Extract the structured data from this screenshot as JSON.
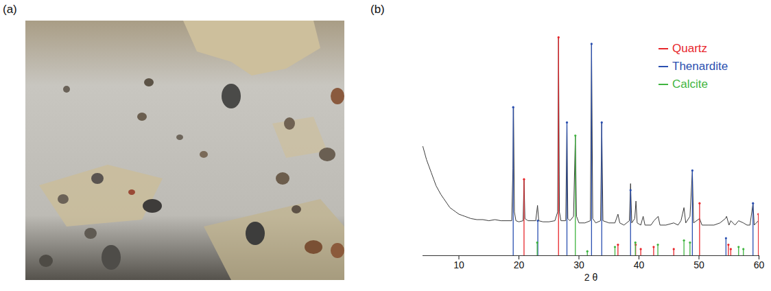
{
  "panels": [
    {
      "label": "(a)"
    },
    {
      "label": "(b)"
    }
  ],
  "chart_data": {
    "type": "line",
    "xlabel": "2 θ",
    "ylabel": null,
    "xlim": [
      4,
      60
    ],
    "xticks": [
      10,
      20,
      30,
      40,
      50,
      60
    ],
    "ylim": [
      0,
      105
    ],
    "tick_labels": "x",
    "grid": false,
    "legend": "top-right",
    "series": [
      {
        "name": null,
        "type": "line",
        "color": "#3a3a3a",
        "x": [
          4.0,
          4.3,
          4.6,
          5.0,
          5.4,
          5.8,
          6.2,
          6.6,
          7.0,
          7.5,
          8.0,
          8.5,
          9.0,
          9.5,
          10.0,
          10.5,
          11.0,
          11.5,
          12.0,
          13.0,
          14.0,
          15.0,
          16.0,
          17.0,
          18.0,
          18.8,
          19.0,
          19.1,
          19.25,
          19.5,
          20.0,
          20.7,
          20.85,
          21.0,
          21.5,
          22.0,
          22.8,
          23.1,
          23.3,
          24.0,
          25.0,
          26.0,
          26.45,
          26.6,
          26.75,
          27.0,
          27.8,
          28.0,
          28.15,
          28.5,
          29.1,
          29.4,
          29.6,
          30.0,
          31.0,
          31.9,
          32.1,
          32.3,
          32.8,
          33.6,
          33.8,
          34.0,
          35.0,
          36.0,
          36.5,
          36.8,
          37.5,
          38.4,
          38.6,
          38.8,
          39.3,
          39.5,
          39.7,
          40.3,
          40.7,
          41.0,
          42.0,
          42.5,
          43.2,
          43.5,
          44.5,
          45.8,
          46.5,
          47.0,
          47.5,
          47.8,
          48.5,
          48.9,
          49.1,
          50.1,
          50.5,
          51.5,
          52.5,
          53.5,
          54.4,
          54.6,
          55.0,
          55.3,
          56.0,
          56.6,
          57.4,
          58.0,
          58.5,
          59.0,
          59.2,
          59.9,
          60.0
        ],
        "values": [
          50,
          47,
          44,
          41,
          38,
          35,
          32,
          30,
          28,
          26,
          24,
          22,
          21,
          20,
          19,
          18.5,
          18,
          17.5,
          17,
          16.5,
          16.5,
          16,
          16.5,
          16,
          16,
          16,
          40,
          68,
          20,
          16,
          15.5,
          16,
          35,
          17,
          16,
          16,
          16,
          23,
          16,
          15.5,
          15.5,
          16,
          20,
          100,
          20,
          16,
          16,
          61,
          17,
          16,
          18,
          55,
          18,
          15,
          15,
          16,
          97,
          17,
          15,
          16,
          61,
          16,
          15,
          15,
          19,
          15,
          14,
          16,
          33,
          15,
          17,
          25,
          15,
          14,
          18,
          14,
          14,
          16,
          18,
          14,
          14,
          15,
          14,
          16,
          22,
          15,
          18,
          39,
          15,
          17,
          14,
          14,
          14,
          15,
          17,
          18,
          14,
          16,
          14,
          16,
          15,
          14,
          14,
          24,
          14,
          16,
          14
        ]
      },
      {
        "name": "Quartz",
        "type": "stick",
        "color": "#e8262b",
        "marker": "dot",
        "x": [
          20.85,
          26.6,
          36.5,
          39.45,
          40.3,
          42.45,
          45.8,
          50.1,
          54.9,
          55.3,
          59.9
        ],
        "values": [
          35,
          100,
          5,
          5,
          3,
          4,
          3,
          24,
          5,
          3,
          19
        ]
      },
      {
        "name": "Thenardite",
        "type": "stick",
        "color": "#2a4fb0",
        "marker": "dot",
        "x": [
          19.05,
          23.15,
          28.0,
          32.1,
          33.8,
          38.6,
          48.9,
          54.5,
          59.0
        ],
        "values": [
          68,
          16,
          61,
          97,
          61,
          30,
          39,
          8,
          24
        ]
      },
      {
        "name": "Calcite",
        "type": "stick",
        "color": "#3fb53f",
        "marker": "dot",
        "x": [
          23.05,
          29.4,
          31.4,
          36.0,
          39.4,
          43.15,
          47.5,
          48.5,
          56.6,
          57.4
        ],
        "values": [
          6,
          55,
          2,
          4,
          6,
          5,
          7,
          6,
          4,
          3
        ]
      }
    ]
  }
}
